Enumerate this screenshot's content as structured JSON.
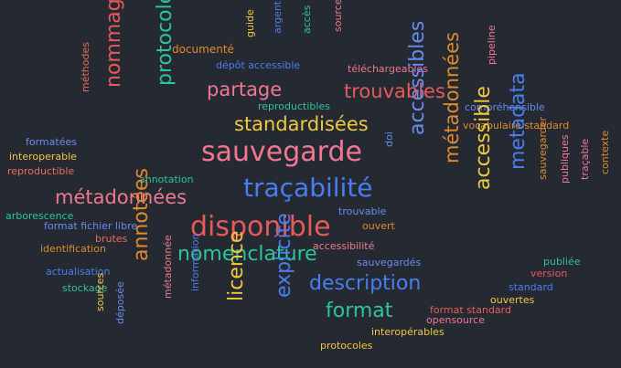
{
  "background": "#252932",
  "colors": {
    "red": "#e65a5a",
    "pink": "#f07890",
    "orange": "#e08a2c",
    "yellow": "#f0c840",
    "green": "#2ec49a",
    "blue": "#4a7df0",
    "lightblue": "#6a8cf0",
    "coral": "#ee6a5a"
  },
  "words": [
    {
      "text": "documenté",
      "color": "#e08a2c",
      "size": 12
    },
    {
      "text": "guide",
      "color": "#f0c840",
      "size": 11,
      "vertical": true
    },
    {
      "text": "argent",
      "color": "#4a7df0",
      "size": 11,
      "vertical": true
    },
    {
      "text": "accès",
      "color": "#2ec49a",
      "size": 11,
      "vertical": true
    },
    {
      "text": "source",
      "color": "#f07890",
      "size": 11,
      "vertical": true
    },
    {
      "text": "dépôt accessible",
      "color": "#4a7df0",
      "size": 11
    },
    {
      "text": "téléchargeables",
      "color": "#f07890",
      "size": 11
    },
    {
      "text": "pipeline",
      "color": "#f07890",
      "size": 11,
      "vertical": true
    },
    {
      "text": "partage",
      "color": "#f07890",
      "size": 21
    },
    {
      "text": "trouvables",
      "color": "#e65a5a",
      "size": 21
    },
    {
      "text": "méthodes",
      "color": "#ee6a5a",
      "size": 11,
      "vertical": true
    },
    {
      "text": "nommage",
      "color": "#e65a5a",
      "size": 22,
      "vertical": true
    },
    {
      "text": "protocole",
      "color": "#2ec49a",
      "size": 22,
      "vertical": true
    },
    {
      "text": "reproductibles",
      "color": "#2ec49a",
      "size": 11
    },
    {
      "text": "compréhensible",
      "color": "#6a8cf0",
      "size": 11
    },
    {
      "text": "standardisées",
      "color": "#f0c840",
      "size": 21
    },
    {
      "text": "vocabulaire standard",
      "color": "#e08a2c",
      "size": 11
    },
    {
      "text": "formatées",
      "color": "#6a8cf0",
      "size": 11
    },
    {
      "text": "interoperable",
      "color": "#f0c840",
      "size": 11
    },
    {
      "text": "reproductible",
      "color": "#ee6a5a",
      "size": 11
    },
    {
      "text": "sauvegarde",
      "color": "#f07890",
      "size": 30
    },
    {
      "text": "doi",
      "color": "#6a8cf0",
      "size": 11,
      "vertical": true
    },
    {
      "text": "accessibles",
      "color": "#6a8cf0",
      "size": 22,
      "vertical": true
    },
    {
      "text": "métadonnées",
      "color": "#e08a2c",
      "size": 21,
      "vertical": true
    },
    {
      "text": "metadata",
      "color": "#4a7df0",
      "size": 22,
      "vertical": true
    },
    {
      "text": "accessible",
      "color": "#f0c840",
      "size": 22,
      "vertical": true
    },
    {
      "text": "sauvegarder",
      "color": "#e08a2c",
      "size": 11,
      "vertical": true
    },
    {
      "text": "publiques",
      "color": "#f07890",
      "size": 11,
      "vertical": true
    },
    {
      "text": "traçable",
      "color": "#f07890",
      "size": 11,
      "vertical": true
    },
    {
      "text": "contexte",
      "color": "#e08a2c",
      "size": 11,
      "vertical": true
    },
    {
      "text": "annotation",
      "color": "#2ec49a",
      "size": 11
    },
    {
      "text": "traçabilité",
      "color": "#4a7df0",
      "size": 28
    },
    {
      "text": "métadonnées",
      "color": "#f07890",
      "size": 21
    },
    {
      "text": "arborescence",
      "color": "#2ec49a",
      "size": 11
    },
    {
      "text": "trouvable",
      "color": "#6a8cf0",
      "size": 11
    },
    {
      "text": "format fichier libre",
      "color": "#6a8cf0",
      "size": 11
    },
    {
      "text": "ouvert",
      "color": "#e08a2c",
      "size": 11
    },
    {
      "text": "disponible",
      "color": "#e65a5a",
      "size": 30
    },
    {
      "text": "brutes",
      "color": "#ee6a5a",
      "size": 11
    },
    {
      "text": "identification",
      "color": "#e08a2c",
      "size": 11
    },
    {
      "text": "annotées",
      "color": "#e08a2c",
      "size": 22,
      "vertical": true
    },
    {
      "text": "accessibilité",
      "color": "#f07890",
      "size": 11
    },
    {
      "text": "nomenclature",
      "color": "#2ec49a",
      "size": 22
    },
    {
      "text": "sauvegardés",
      "color": "#6a8cf0",
      "size": 11
    },
    {
      "text": "publiée",
      "color": "#2ec49a",
      "size": 11
    },
    {
      "text": "version",
      "color": "#e65a5a",
      "size": 11
    },
    {
      "text": "actualisation",
      "color": "#4a7df0",
      "size": 11
    },
    {
      "text": "stockage",
      "color": "#2ec49a",
      "size": 11
    },
    {
      "text": "description",
      "color": "#4a7df0",
      "size": 22
    },
    {
      "text": "standard",
      "color": "#4a7df0",
      "size": 11
    },
    {
      "text": "ouvertes",
      "color": "#f0c840",
      "size": 11
    },
    {
      "text": "format standard",
      "color": "#e65a5a",
      "size": 11
    },
    {
      "text": "opensource",
      "color": "#f07890",
      "size": 11
    },
    {
      "text": "sources",
      "color": "#f0c840",
      "size": 11,
      "vertical": true
    },
    {
      "text": "déposée",
      "color": "#6a8cf0",
      "size": 11,
      "vertical": true
    },
    {
      "text": "métadonnée",
      "color": "#f07890",
      "size": 11,
      "vertical": true
    },
    {
      "text": "information",
      "color": "#4a7df0",
      "size": 11,
      "vertical": true
    },
    {
      "text": "licence",
      "color": "#f0c840",
      "size": 22,
      "vertical": true
    },
    {
      "text": "explicite",
      "color": "#4a7df0",
      "size": 22,
      "vertical": true
    },
    {
      "text": "format",
      "color": "#2ec49a",
      "size": 22
    },
    {
      "text": "interopérables",
      "color": "#f0c840",
      "size": 11
    },
    {
      "text": "protocoles",
      "color": "#f0c840",
      "size": 11
    }
  ]
}
